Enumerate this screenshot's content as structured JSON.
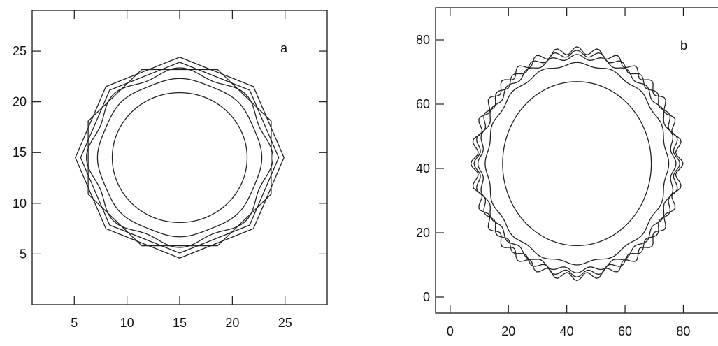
{
  "chart_data": [
    {
      "type": "line",
      "title": "",
      "panel_label": "a",
      "xlabel": "",
      "ylabel": "",
      "xlim": [
        1,
        29
      ],
      "ylim": [
        0,
        29
      ],
      "xticks": [
        5,
        10,
        15,
        20,
        25
      ],
      "yticks": [
        5,
        10,
        15,
        20,
        25
      ],
      "grid": false,
      "series": [
        {
          "shape": "octagon",
          "cx": 15,
          "cy": 14.5,
          "r": 9.4,
          "angles": [
            22.5,
            67.5,
            112.5,
            157.5,
            202.5,
            247.5,
            292.5,
            337.5
          ]
        },
        {
          "shape": "octagon",
          "cx": 15,
          "cy": 14.5,
          "r": 9.9,
          "angles": [
            0,
            45,
            90,
            135,
            180,
            225,
            270,
            315
          ]
        },
        {
          "shape": "octagon",
          "cx": 15,
          "cy": 14.5,
          "r": 9.4,
          "angles": [
            0,
            45,
            90,
            135,
            180,
            225,
            270,
            315
          ]
        },
        {
          "shape": "ring",
          "cx": 15,
          "cy": 14.5,
          "r": 8.5,
          "wave_amp": 0.35,
          "wave_n": 8
        },
        {
          "shape": "ring",
          "cx": 15,
          "cy": 14.5,
          "r": 7.7,
          "wave_amp": 0.1,
          "wave_n": 8
        },
        {
          "shape": "ring",
          "cx": 15,
          "cy": 14.5,
          "r": 6.4,
          "wave_amp": 0.0,
          "wave_n": 8
        }
      ]
    },
    {
      "type": "line",
      "title": "",
      "panel_label": "b",
      "xlabel": "",
      "ylabel": "",
      "xlim": [
        -5,
        95
      ],
      "ylim": [
        -5,
        90
      ],
      "xticks": [
        0,
        20,
        40,
        60,
        80
      ],
      "yticks": [
        0,
        20,
        40,
        60,
        80
      ],
      "grid": false,
      "series": [
        {
          "shape": "ring",
          "cx": 43.5,
          "cy": 41.5,
          "r": 35.2,
          "wave_amp": 1.2,
          "wave_n": 32
        },
        {
          "shape": "ring",
          "cx": 43.5,
          "cy": 41.5,
          "r": 34.3,
          "wave_amp": 1.0,
          "wave_n": 28
        },
        {
          "shape": "ring",
          "cx": 43.5,
          "cy": 41.5,
          "r": 33.2,
          "wave_amp": 0.8,
          "wave_n": 24
        },
        {
          "shape": "ring",
          "cx": 43.5,
          "cy": 41.5,
          "r": 31.0,
          "wave_amp": 0.5,
          "wave_n": 16
        },
        {
          "shape": "ring",
          "cx": 43.5,
          "cy": 41.5,
          "r": 25.5,
          "wave_amp": 0.0,
          "wave_n": 8
        }
      ]
    }
  ]
}
